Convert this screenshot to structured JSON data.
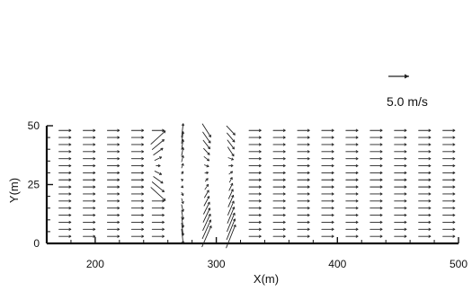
{
  "chart_data": {
    "type": "vector-field",
    "title": "",
    "xlabel": "X(m)",
    "ylabel": "Y(m)",
    "xlim": [
      160,
      500
    ],
    "ylim": [
      0,
      50
    ],
    "x_ticks": [
      200,
      300,
      400,
      500
    ],
    "y_ticks": [
      0,
      25,
      50
    ],
    "grid": false,
    "legend": "none",
    "reference_vector": {
      "label": "5.0 m/s",
      "speed": 5.0,
      "unit": "m/s"
    },
    "field": {
      "columns_x": [
        175,
        195,
        215,
        235,
        252,
        272,
        292,
        312,
        332,
        352,
        372,
        392,
        412,
        432,
        452,
        472,
        492
      ],
      "rows_y": [
        48,
        45,
        42,
        39,
        36,
        33,
        30,
        27,
        24,
        21,
        18,
        15,
        12,
        9,
        6,
        3
      ],
      "typical_speed": 3.5,
      "features": [
        {
          "kind": "uniform-flow",
          "direction": "+x",
          "x_range": [
            160,
            240
          ]
        },
        {
          "kind": "semicircular-front",
          "center": [
            252,
            33
          ],
          "radius_y": 12
        },
        {
          "kind": "vortex",
          "center": [
            265,
            27
          ]
        },
        {
          "kind": "disturbed-band",
          "x_range": [
            285,
            312
          ]
        },
        {
          "kind": "uniform-flow",
          "direction": "+x",
          "x_range": [
            320,
            500
          ]
        }
      ]
    }
  },
  "colors": {
    "axis": "#111111",
    "arrow": "#222222",
    "background": "#ffffff"
  }
}
